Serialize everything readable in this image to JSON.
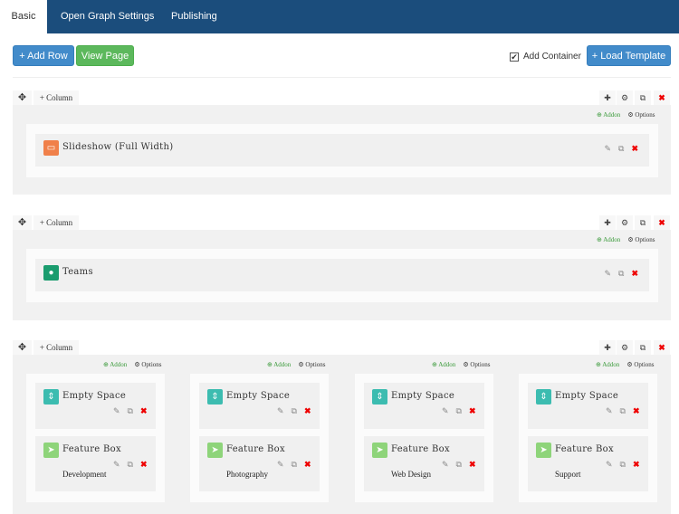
{
  "tabs": [
    {
      "label": "Basic"
    },
    {
      "label": "Open Graph Settings"
    },
    {
      "label": "Publishing"
    }
  ],
  "toolbar": {
    "add_row": "+ Add Row",
    "view_page": "View Page",
    "add_container": "Add Container",
    "add_container_checked": true,
    "load_template": "+ Load Template"
  },
  "row_labels": {
    "column": "+ Column",
    "addon": "Addon",
    "options": "Options"
  },
  "rows": [
    {
      "columns": [
        {
          "addons": [
            {
              "title": "Slideshow (Full Width)",
              "icon": "slideshow-icon",
              "color": "#f0804a"
            }
          ]
        }
      ]
    },
    {
      "columns": [
        {
          "addons": [
            {
              "title": "Teams",
              "icon": "user-icon",
              "color": "#1a9c6e"
            }
          ]
        }
      ]
    },
    {
      "columns": [
        {
          "addons": [
            {
              "title": "Empty Space",
              "icon": "spacing-icon",
              "color": "#3cbcb0"
            },
            {
              "title": "Feature Box",
              "icon": "rocket-icon",
              "color": "#8ed47a",
              "subtitle": "Development"
            }
          ]
        },
        {
          "addons": [
            {
              "title": "Empty Space",
              "icon": "spacing-icon",
              "color": "#3cbcb0"
            },
            {
              "title": "Feature Box",
              "icon": "rocket-icon",
              "color": "#8ed47a",
              "subtitle": "Photography"
            }
          ]
        },
        {
          "addons": [
            {
              "title": "Empty Space",
              "icon": "spacing-icon",
              "color": "#3cbcb0"
            },
            {
              "title": "Feature Box",
              "icon": "rocket-icon",
              "color": "#8ed47a",
              "subtitle": "Web Design"
            }
          ]
        },
        {
          "addons": [
            {
              "title": "Empty Space",
              "icon": "spacing-icon",
              "color": "#3cbcb0"
            },
            {
              "title": "Feature Box",
              "icon": "rocket-icon",
              "color": "#8ed47a",
              "subtitle": "Support"
            }
          ]
        }
      ]
    }
  ]
}
